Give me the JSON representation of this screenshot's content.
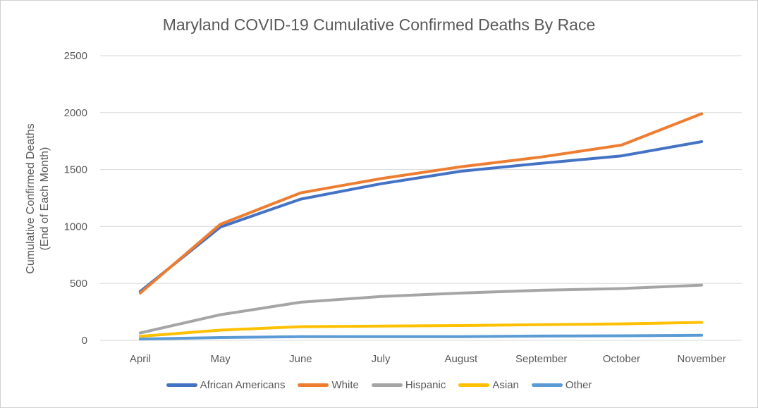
{
  "chart_data": {
    "type": "line",
    "title": "Maryland COVID-19 Cumulative Confirmed Deaths By Race",
    "ylabel_line1": "Cumulative Confirmed Deaths",
    "ylabel_line2": "(End of Each Month)",
    "xlabel": "",
    "categories": [
      "April",
      "May",
      "June",
      "July",
      "August",
      "September",
      "October",
      "November"
    ],
    "ylim": [
      0,
      2500
    ],
    "yticks": [
      0,
      500,
      1000,
      1500,
      2000,
      2500
    ],
    "grid": true,
    "legend_position": "bottom",
    "series": [
      {
        "name": "African Americans",
        "color": "#4472C4",
        "values": [
          430,
          995,
          1240,
          1375,
          1485,
          1555,
          1620,
          1745
        ]
      },
      {
        "name": "White",
        "color": "#ED7D31",
        "values": [
          415,
          1020,
          1295,
          1420,
          1525,
          1610,
          1715,
          1990
        ]
      },
      {
        "name": "Hispanic",
        "color": "#A5A5A5",
        "values": [
          65,
          225,
          335,
          385,
          415,
          440,
          455,
          485
        ]
      },
      {
        "name": "Asian",
        "color": "#FFC000",
        "values": [
          35,
          90,
          120,
          125,
          130,
          138,
          145,
          158
        ]
      },
      {
        "name": "Other",
        "color": "#5B9BD5",
        "values": [
          12,
          25,
          32,
          33,
          33,
          38,
          40,
          45
        ]
      }
    ]
  }
}
